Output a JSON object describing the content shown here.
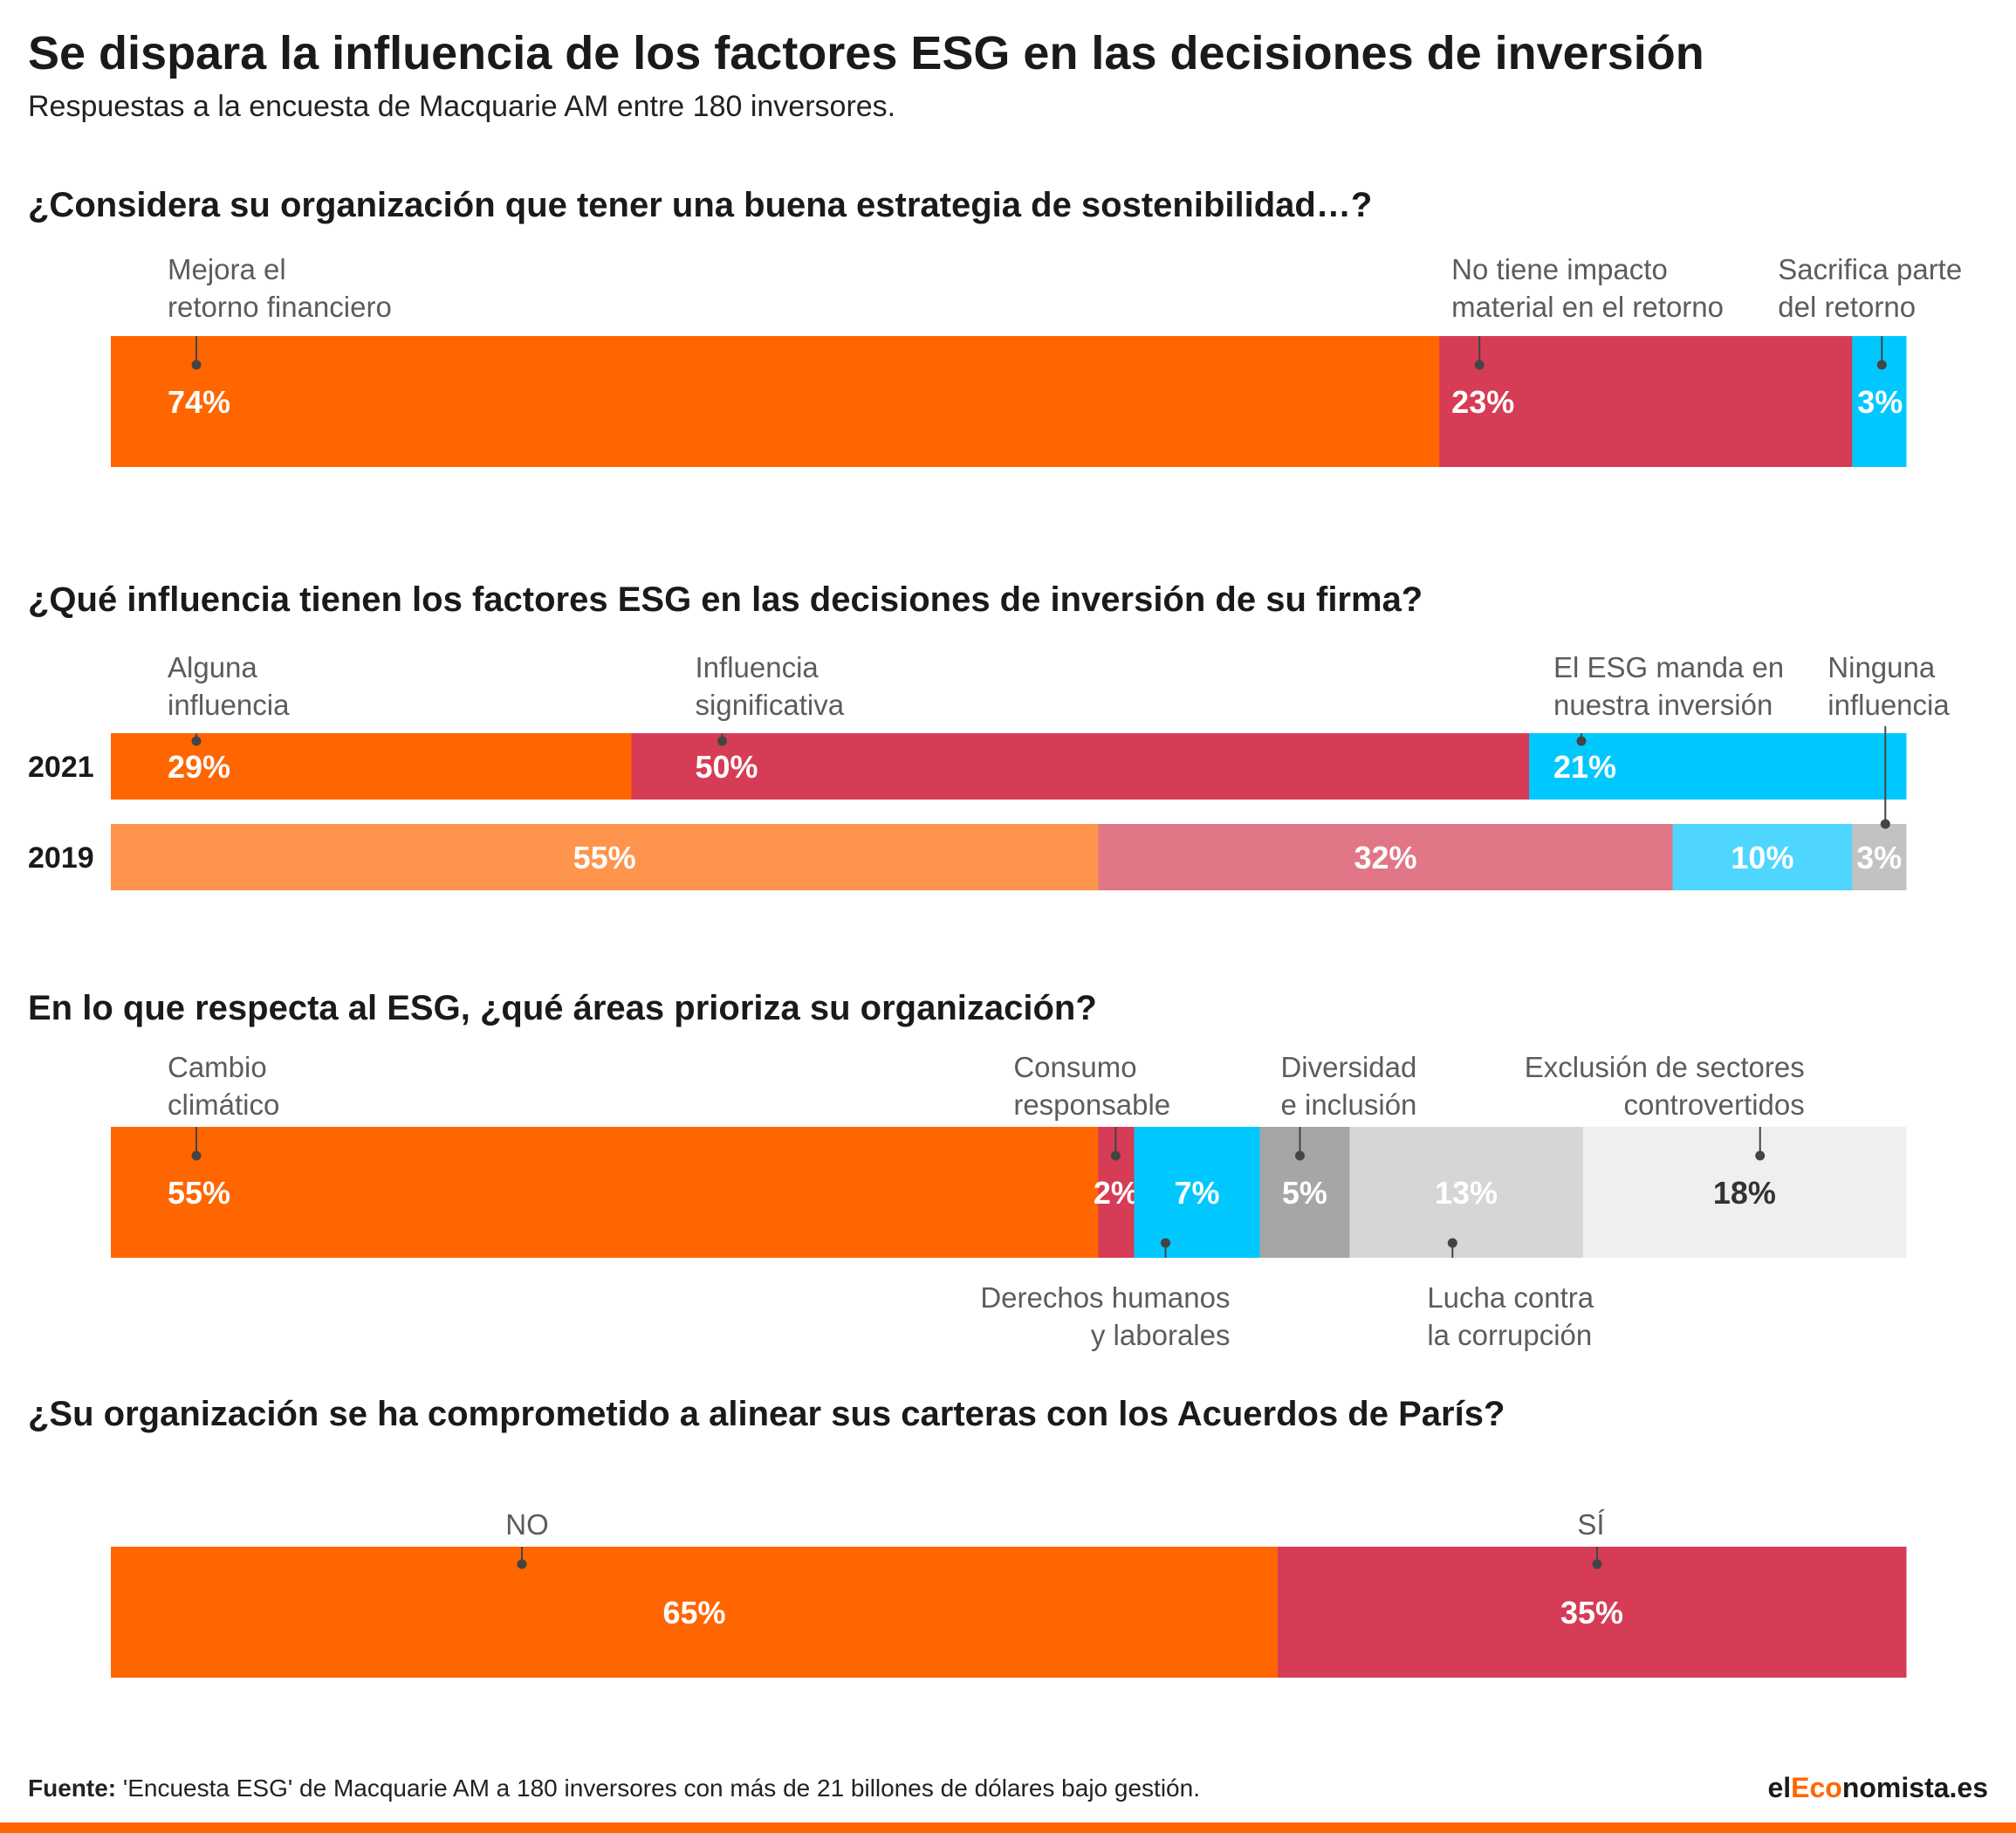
{
  "title": "Se dispara la influencia de los factores ESG en las decisiones de inversión",
  "subtitle": "Respuestas a la encuesta de Macquarie AM  entre 180 inversores.",
  "footer": {
    "label": "Fuente:",
    "text": " 'Encuesta ESG' de Macquarie AM a 180 inversores con más de 21 billones de dólares bajo gestión."
  },
  "brand": {
    "prefix": "el",
    "accent": "Eco",
    "suffix": "nomista.es"
  },
  "colors": {
    "orange": "#ff6600",
    "red": "#d63c55",
    "cyan": "#00c8ff",
    "orange_light": "#ff944d",
    "red_light": "#e17786",
    "cyan_light": "#4fd6ff",
    "grey_light": "#c2c2c2",
    "grey_dark": "#a6a6a6",
    "grey_mid": "#d6d6d6",
    "grey_pale": "#efefef",
    "brand_accent": "#ff6600"
  },
  "chart_data": [
    {
      "type": "bar",
      "stacked": "100%",
      "question": "¿Considera su organización que tener una buena estrategia de sostenibilidad…?",
      "rows": [
        {
          "label": "",
          "segments": [
            {
              "name": "Mejora el retorno financiero",
              "value": 74,
              "display": "74%",
              "color": "#ff6600"
            },
            {
              "name": "No tiene impacto material en el retorno",
              "value": 23,
              "display": "23%",
              "color": "#d63c55"
            },
            {
              "name": "Sacrifica parte del retorno",
              "value": 3,
              "display": "3%",
              "color": "#00c8ff"
            }
          ]
        }
      ]
    },
    {
      "type": "bar",
      "stacked": "100%",
      "question": "¿Qué influencia tienen los factores ESG en las decisiones de inversión de su firma?",
      "rows": [
        {
          "label": "2021",
          "segments": [
            {
              "name": "Alguna influencia",
              "value": 29,
              "display": "29%",
              "color": "#ff6600"
            },
            {
              "name": "Influencia significativa",
              "value": 50,
              "display": "50%",
              "color": "#d63c55"
            },
            {
              "name": "El ESG manda en nuestra inversión",
              "value": 21,
              "display": "21%",
              "color": "#00c8ff"
            }
          ]
        },
        {
          "label": "2019",
          "segments": [
            {
              "name": "Alguna influencia",
              "value": 55,
              "display": "55%",
              "color": "#ff944d"
            },
            {
              "name": "Influencia significativa",
              "value": 32,
              "display": "32%",
              "color": "#e17786"
            },
            {
              "name": "El ESG manda en nuestra inversión",
              "value": 10,
              "display": "10%",
              "color": "#4fd6ff"
            },
            {
              "name": "Ninguna influencia",
              "value": 3,
              "display": "3%",
              "color": "#c2c2c2"
            }
          ]
        }
      ]
    },
    {
      "type": "bar",
      "stacked": "100%",
      "question": "En lo que respecta al ESG, ¿qué áreas prioriza su organización?",
      "rows": [
        {
          "label": "",
          "segments": [
            {
              "name": "Cambio climático",
              "value": 55,
              "display": "55%",
              "color": "#ff6600"
            },
            {
              "name": "Consumo responsable",
              "value": 2,
              "display": "2%",
              "color": "#d63c55"
            },
            {
              "name": "Derechos humanos y laborales",
              "value": 7,
              "display": "7%",
              "color": "#00c8ff"
            },
            {
              "name": "Diversidad e inclusión",
              "value": 5,
              "display": "5%",
              "color": "#a6a6a6"
            },
            {
              "name": "Lucha contra la corrupción",
              "value": 13,
              "display": "13%",
              "color": "#d6d6d6"
            },
            {
              "name": "Exclusión de sectores controvertidos",
              "value": 18,
              "display": "18%",
              "color": "#efefef"
            }
          ]
        }
      ]
    },
    {
      "type": "bar",
      "stacked": "100%",
      "question": "¿Su organización se ha comprometido a alinear sus carteras con los Acuerdos de París?",
      "rows": [
        {
          "label": "",
          "segments": [
            {
              "name": "NO",
              "value": 65,
              "display": "65%",
              "color": "#ff6600"
            },
            {
              "name": "SÍ",
              "value": 35,
              "display": "35%",
              "color": "#d63c55"
            }
          ]
        }
      ]
    }
  ],
  "annotations": [
    {
      "chart": 0,
      "row": 0,
      "segment": 0,
      "lines": [
        "Mejora el",
        "retorno financiero"
      ]
    },
    {
      "chart": 0,
      "row": 0,
      "segment": 1,
      "lines": [
        "No tiene impacto",
        "material en el retorno"
      ]
    },
    {
      "chart": 0,
      "row": 0,
      "segment": 2,
      "lines": [
        "Sacrifica parte",
        "del retorno"
      ]
    },
    {
      "chart": 1,
      "row": 0,
      "segment": 0,
      "lines": [
        "Alguna",
        "influencia"
      ]
    },
    {
      "chart": 1,
      "row": 0,
      "segment": 1,
      "lines": [
        "Influencia",
        "significativa"
      ]
    },
    {
      "chart": 1,
      "row": 0,
      "segment": 2,
      "lines": [
        "El ESG manda en",
        "nuestra inversión"
      ]
    },
    {
      "chart": 1,
      "row": 1,
      "segment": 3,
      "lines": [
        "Ninguna",
        "influencia"
      ]
    },
    {
      "chart": 2,
      "row": 0,
      "segment": 0,
      "lines": [
        "Cambio",
        "climático"
      ]
    },
    {
      "chart": 2,
      "row": 0,
      "segment": 1,
      "lines": [
        "Consumo",
        "responsable"
      ]
    },
    {
      "chart": 2,
      "row": 0,
      "segment": 2,
      "lines": [
        "Derechos humanos",
        "y laborales"
      ]
    },
    {
      "chart": 2,
      "row": 0,
      "segment": 3,
      "lines": [
        "Diversidad",
        "e inclusión"
      ]
    },
    {
      "chart": 2,
      "row": 0,
      "segment": 4,
      "lines": [
        "Lucha contra",
        "la corrupción"
      ]
    },
    {
      "chart": 2,
      "row": 0,
      "segment": 5,
      "lines": [
        "Exclusión de sectores",
        "controvertidos"
      ]
    },
    {
      "chart": 3,
      "row": 0,
      "segment": 0,
      "lines": [
        "NO"
      ]
    },
    {
      "chart": 3,
      "row": 0,
      "segment": 1,
      "lines": [
        "SÍ"
      ]
    }
  ]
}
